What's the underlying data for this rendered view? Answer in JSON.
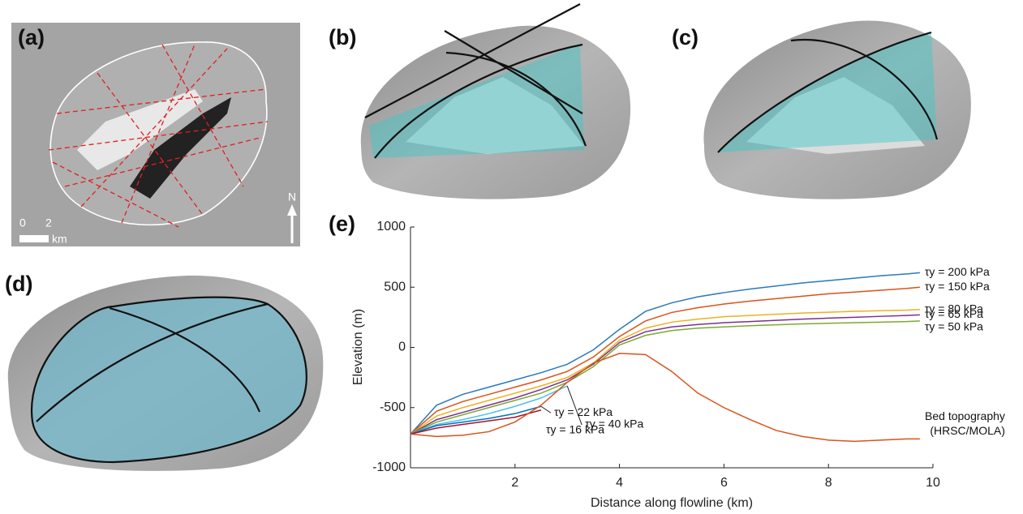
{
  "panels": [
    "(a)",
    "(b)",
    "(c)",
    "(d)"
  ],
  "map_annotations": {
    "scale_start": "0",
    "scale_end": "2",
    "scale_unit": "km",
    "north": "N"
  },
  "chart_data": {
    "type": "line",
    "title": "(e)",
    "x_label": "Distance along flowline (km)",
    "y_label": "Elevation (m)",
    "xlim": [
      0,
      10
    ],
    "xticks": [
      2,
      4,
      6,
      8,
      10
    ],
    "ylim": [
      -1000,
      1000
    ],
    "yticks": [
      1000,
      500,
      0,
      -500,
      -1000
    ],
    "x": [
      0,
      0.5,
      1,
      1.5,
      2,
      2.5,
      3,
      3.5,
      4,
      4.5,
      5,
      5.5,
      6,
      6.5,
      7,
      7.5,
      8,
      8.5,
      9,
      9.5,
      9.75
    ],
    "series": [
      {
        "name": "τy = 200 kPa",
        "color": "#2a7ab9",
        "values": [
          -720,
          -480,
          -390,
          -330,
          -270,
          -210,
          -140,
          -20,
          150,
          300,
          370,
          420,
          455,
          485,
          510,
          535,
          555,
          575,
          595,
          610,
          620
        ]
      },
      {
        "name": "τy = 150 kPa",
        "color": "#d95319",
        "values": [
          -720,
          -530,
          -450,
          -390,
          -330,
          -270,
          -200,
          -80,
          90,
          220,
          290,
          330,
          360,
          385,
          405,
          425,
          445,
          460,
          475,
          490,
          500
        ]
      },
      {
        "name": "τy = 80 kPa",
        "color": "#edb120",
        "values": [
          -720,
          -570,
          -500,
          -440,
          -380,
          -320,
          -250,
          -130,
          60,
          160,
          210,
          235,
          255,
          265,
          275,
          285,
          292,
          300,
          305,
          310,
          315
        ]
      },
      {
        "name": "τy = 65 kPa",
        "color": "#7e2f8e",
        "values": [
          -720,
          -600,
          -540,
          -480,
          -420,
          -350,
          -270,
          -140,
          40,
          130,
          170,
          190,
          205,
          215,
          225,
          235,
          243,
          250,
          258,
          265,
          270
        ]
      },
      {
        "name": "τy = 50 kPa",
        "color": "#77ac30",
        "values": [
          -720,
          -620,
          -560,
          -500,
          -440,
          -380,
          -290,
          -160,
          20,
          100,
          140,
          160,
          170,
          180,
          188,
          195,
          200,
          205,
          210,
          215,
          220
        ]
      },
      {
        "name": "τy = 40 kPa",
        "color": "#4dbeee",
        "values": [
          -720,
          -640,
          -600,
          -550,
          -490,
          -420,
          -320,
          null,
          null,
          null,
          null,
          null,
          null,
          null,
          null,
          null,
          null,
          null,
          null,
          null,
          null
        ]
      },
      {
        "name": "τy = 22 kPa",
        "color": "#0072bd",
        "values": [
          -720,
          -650,
          -620,
          -590,
          -550,
          -490,
          null,
          null,
          null,
          null,
          null,
          null,
          null,
          null,
          null,
          null,
          null,
          null,
          null,
          null,
          null
        ]
      },
      {
        "name": "τy = 16 kPa",
        "color": "#a2142f",
        "values": [
          -720,
          -670,
          -640,
          -610,
          -580,
          -520,
          null,
          null,
          null,
          null,
          null,
          null,
          null,
          null,
          null,
          null,
          null,
          null,
          null,
          null,
          null
        ]
      },
      {
        "name": "Bed topography (HRSC/MOLA)",
        "color": "#d95319",
        "values": [
          -720,
          -740,
          -730,
          -700,
          -620,
          -480,
          -290,
          -130,
          -50,
          -60,
          -200,
          -380,
          -500,
          -600,
          -690,
          -740,
          -770,
          -780,
          -770,
          -760,
          -760
        ]
      }
    ]
  }
}
